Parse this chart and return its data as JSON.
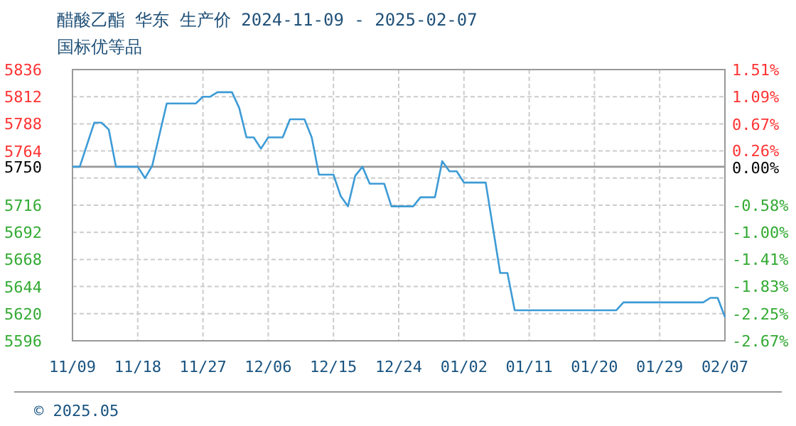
{
  "chart_data": {
    "type": "line",
    "title": "醋酸乙酯 华东 生产价 2024-11-09 - 2025-02-07",
    "subtitle": "国标优等品",
    "annotations": [
      "© 2025.05"
    ],
    "x": [
      "2024-11-09",
      "2024-11-10",
      "2024-11-12",
      "2024-11-13",
      "2024-11-14",
      "2024-11-15",
      "2024-11-18",
      "2024-11-19",
      "2024-11-20",
      "2024-11-22",
      "2024-11-26",
      "2024-11-27",
      "2024-11-28",
      "2024-11-29",
      "2024-12-01",
      "2024-12-02",
      "2024-12-03",
      "2024-12-04",
      "2024-12-05",
      "2024-12-06",
      "2024-12-08",
      "2024-12-09",
      "2024-12-11",
      "2024-12-12",
      "2024-12-13",
      "2024-12-15",
      "2024-12-16",
      "2024-12-17",
      "2024-12-18",
      "2024-12-19",
      "2024-12-20",
      "2024-12-22",
      "2024-12-23",
      "2024-12-26",
      "2024-12-27",
      "2024-12-29",
      "2024-12-30",
      "2024-12-31",
      "2025-01-01",
      "2025-01-02",
      "2025-01-05",
      "2025-01-07",
      "2025-01-08",
      "2025-01-09",
      "2025-01-23",
      "2025-01-24",
      "2025-02-04",
      "2025-02-05",
      "2025-02-06",
      "2025-02-07"
    ],
    "series": [
      {
        "color": "#3d9bd6",
        "values": [
          5750,
          5750,
          5789,
          5789,
          5783,
          5750,
          5750,
          5740,
          5751,
          5806,
          5806,
          5812,
          5812,
          5816,
          5816,
          5802,
          5776,
          5776,
          5766,
          5776,
          5776,
          5792,
          5792,
          5776,
          5743,
          5743,
          5724,
          5715,
          5742,
          5750,
          5735,
          5735,
          5715,
          5715,
          5723,
          5723,
          5755,
          5746,
          5746,
          5736,
          5736,
          5656,
          5656,
          5623,
          5623,
          5630,
          5630,
          5634,
          5634,
          5617
        ]
      }
    ],
    "xlim": [
      "2024-11-09",
      "2025-02-07"
    ],
    "xticks": [
      {
        "value": "2024-11-09",
        "label": "11/09"
      },
      {
        "value": "2024-11-18",
        "label": "11/18"
      },
      {
        "value": "2024-11-27",
        "label": "11/27"
      },
      {
        "value": "2024-12-06",
        "label": "12/06"
      },
      {
        "value": "2024-12-15",
        "label": "12/15"
      },
      {
        "value": "2024-12-24",
        "label": "12/24"
      },
      {
        "value": "2025-01-02",
        "label": "01/02"
      },
      {
        "value": "2025-01-11",
        "label": "01/11"
      },
      {
        "value": "2025-01-20",
        "label": "01/20"
      },
      {
        "value": "2025-01-29",
        "label": "01/29"
      },
      {
        "value": "2025-02-07",
        "label": "02/07"
      }
    ],
    "ylim": [
      5596,
      5836
    ],
    "yticks": [
      5836,
      5812,
      5788,
      5764,
      5750,
      {
        "value": 5740,
        "label": null
      },
      5716,
      5692,
      5668,
      5644,
      5620,
      5596
    ],
    "y2lim": [
      -2.67,
      1.51
    ],
    "y2ticks": [
      {
        "value": 1.51,
        "label": "1.51%"
      },
      {
        "value": 1.09,
        "label": "1.09%"
      },
      {
        "value": 0.67,
        "label": "0.67%"
      },
      {
        "value": 0.26,
        "label": "0.26%"
      },
      {
        "value": 0,
        "label": "0.00%"
      },
      {
        "value": -0.58,
        "label": "-0.58%"
      },
      {
        "value": -1.0,
        "label": "-1.00%"
      },
      {
        "value": -1.41,
        "label": "-1.41%"
      },
      {
        "value": -1.83,
        "label": "-1.83%"
      },
      {
        "value": -2.25,
        "label": "-2.25%"
      },
      {
        "value": -2.67,
        "label": "-2.67%"
      }
    ],
    "ref_lines": [
      {
        "axis": "y",
        "value": 5750,
        "color": "#999999"
      }
    ],
    "grid": true,
    "line_style": "solid",
    "marker": "none"
  }
}
